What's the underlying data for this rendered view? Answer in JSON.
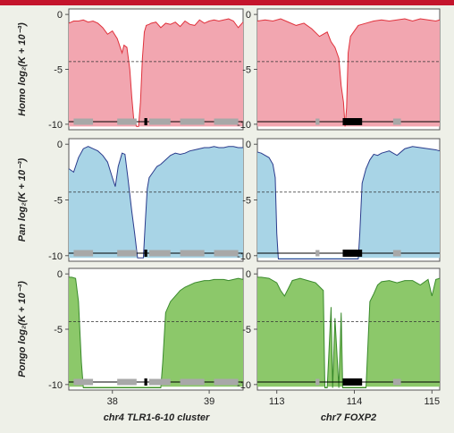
{
  "colors": {
    "top_bar": "#c4142c",
    "background": "#eef0e8",
    "homo": "#f2a6b0",
    "homo_line": "#e0323c",
    "pan": "#a8d4e6",
    "pan_line": "#2a3b8c",
    "pongo": "#8cc86a",
    "pongo_line": "#3a8a2c"
  },
  "chart_data": {
    "type": "area",
    "y_ticks": [
      "0",
      "-5",
      "-10"
    ],
    "ylim": [
      -10.5,
      0.5
    ],
    "ref_line": -4.3,
    "columns": [
      {
        "xlabel": "chr4 TLR1-6-10 cluster",
        "xlim": [
          37.55,
          39.35
        ],
        "xticks": [
          "38",
          "39"
        ],
        "xtick_values": [
          38,
          39
        ]
      },
      {
        "xlabel": "chr7 FOXP2",
        "xlim": [
          112.75,
          115.1
        ],
        "xticks": [
          "113",
          "114",
          "115"
        ],
        "xtick_values": [
          113,
          114,
          115
        ]
      }
    ],
    "rows": [
      {
        "species": "Homo",
        "ylabel_rest": "log₂(K + 10⁻³)",
        "color_key": "homo",
        "series": [
          {
            "x": [
              37.55,
              37.6,
              37.65,
              37.7,
              37.75,
              37.8,
              37.85,
              37.9,
              37.95,
              38.0,
              38.05,
              38.1,
              38.12,
              38.15,
              38.18,
              38.2,
              38.22,
              38.25,
              38.27,
              38.29,
              38.31,
              38.33,
              38.35,
              38.38,
              38.4,
              38.45,
              38.5,
              38.55,
              38.6,
              38.65,
              38.7,
              38.75,
              38.8,
              38.85,
              38.9,
              38.95,
              39.0,
              39.05,
              39.1,
              39.15,
              39.2,
              39.25,
              39.3,
              39.35
            ],
            "y": [
              -0.8,
              -0.6,
              -0.6,
              -0.5,
              -0.7,
              -0.6,
              -0.8,
              -1.2,
              -1.8,
              -1.5,
              -2.2,
              -3.5,
              -2.8,
              -3.0,
              -5.0,
              -7.5,
              -9.5,
              -10.2,
              -10.2,
              -8.0,
              -4.0,
              -1.6,
              -1.0,
              -0.9,
              -0.8,
              -0.7,
              -1.2,
              -0.8,
              -0.9,
              -0.7,
              -1.1,
              -0.6,
              -0.9,
              -1.0,
              -0.5,
              -0.8,
              -0.6,
              -0.5,
              -0.6,
              -0.5,
              -0.4,
              -0.6,
              -1.2,
              -0.7
            ]
          },
          {
            "x": [
              112.75,
              112.85,
              112.95,
              113.05,
              113.15,
              113.25,
              113.35,
              113.45,
              113.55,
              113.65,
              113.7,
              113.75,
              113.8,
              113.83,
              113.86,
              113.88,
              113.9,
              113.92,
              113.95,
              114.0,
              114.05,
              114.15,
              114.25,
              114.35,
              114.45,
              114.55,
              114.65,
              114.75,
              114.85,
              114.95,
              115.05,
              115.1
            ],
            "y": [
              -0.6,
              -0.5,
              -0.6,
              -0.4,
              -0.7,
              -1.0,
              -0.8,
              -1.3,
              -2.0,
              -1.6,
              -2.5,
              -3.0,
              -4.0,
              -6.5,
              -8.0,
              -10.2,
              -8.5,
              -3.5,
              -2.0,
              -1.5,
              -1.0,
              -0.8,
              -0.6,
              -0.5,
              -0.6,
              -0.5,
              -0.4,
              -0.6,
              -0.4,
              -0.5,
              -0.6,
              -0.5
            ]
          }
        ]
      },
      {
        "species": "Pan",
        "ylabel_rest": "log₂(K + 10⁻³)",
        "color_key": "pan",
        "series": [
          {
            "x": [
              37.55,
              37.6,
              37.65,
              37.7,
              37.75,
              37.8,
              37.85,
              37.9,
              37.95,
              38.0,
              38.03,
              38.06,
              38.1,
              38.13,
              38.16,
              38.2,
              38.23,
              38.26,
              38.28,
              38.3,
              38.32,
              38.34,
              38.36,
              38.38,
              38.42,
              38.46,
              38.5,
              38.55,
              38.6,
              38.65,
              38.7,
              38.75,
              38.8,
              38.85,
              38.9,
              38.95,
              39.0,
              39.05,
              39.1,
              39.15,
              39.2,
              39.25,
              39.3,
              39.35
            ],
            "y": [
              -2.2,
              -2.5,
              -1.2,
              -0.4,
              -0.2,
              -0.4,
              -0.6,
              -1.0,
              -1.6,
              -3.0,
              -3.8,
              -2.0,
              -0.8,
              -0.9,
              -3.0,
              -6.0,
              -8.0,
              -10.2,
              -10.2,
              -10.2,
              -10.2,
              -7.0,
              -4.0,
              -3.0,
              -2.5,
              -2.0,
              -1.8,
              -1.4,
              -1.0,
              -0.8,
              -0.9,
              -0.8,
              -0.6,
              -0.5,
              -0.4,
              -0.3,
              -0.3,
              -0.2,
              -0.3,
              -0.3,
              -0.2,
              -0.2,
              -0.3,
              -0.3
            ]
          },
          {
            "x": [
              112.75,
              112.8,
              112.85,
              112.9,
              112.95,
              112.98,
              113.0,
              113.02,
              113.5,
              114.0,
              114.05,
              114.07,
              114.1,
              114.15,
              114.2,
              114.25,
              114.3,
              114.35,
              114.45,
              114.55,
              114.65,
              114.75,
              114.85,
              114.95,
              115.05,
              115.1
            ],
            "y": [
              -0.7,
              -0.8,
              -1.0,
              -1.2,
              -1.8,
              -3.0,
              -8.0,
              -10.3,
              -10.3,
              -10.3,
              -10.3,
              -8.0,
              -3.5,
              -2.2,
              -1.4,
              -0.9,
              -1.0,
              -0.8,
              -0.6,
              -1.0,
              -0.4,
              -0.2,
              -0.3,
              -0.4,
              -0.5,
              -0.6
            ]
          }
        ]
      },
      {
        "species": "Pongo",
        "ylabel_rest": "log₂(K + 10⁻³)",
        "color_key": "pongo",
        "series": [
          {
            "x": [
              37.55,
              37.58,
              37.62,
              37.65,
              37.68,
              37.7,
              38.5,
              38.52,
              38.55,
              38.6,
              38.65,
              38.7,
              38.75,
              38.8,
              38.85,
              38.9,
              38.95,
              39.0,
              39.05,
              39.1,
              39.15,
              39.2,
              39.25,
              39.3,
              39.35
            ],
            "y": [
              -0.3,
              -0.3,
              -0.4,
              -2.5,
              -8.0,
              -10.3,
              -10.3,
              -8.0,
              -3.5,
              -2.5,
              -2.0,
              -1.5,
              -1.2,
              -1.0,
              -0.8,
              -0.7,
              -0.6,
              -0.6,
              -0.5,
              -0.5,
              -0.5,
              -0.6,
              -0.5,
              -0.4,
              -0.5
            ]
          },
          {
            "x": [
              112.75,
              112.8,
              112.9,
              113.0,
              113.05,
              113.1,
              113.15,
              113.2,
              113.3,
              113.4,
              113.5,
              113.6,
              113.62,
              113.65,
              113.7,
              113.72,
              113.75,
              113.8,
              113.83,
              113.85,
              113.88,
              113.9,
              113.95,
              114.0,
              114.05,
              114.1,
              114.15,
              114.2,
              114.25,
              114.3,
              114.35,
              114.45,
              114.55,
              114.65,
              114.75,
              114.85,
              114.95,
              115.0,
              115.05,
              115.1
            ],
            "y": [
              -0.3,
              -0.3,
              -0.4,
              -0.8,
              -1.5,
              -2.0,
              -1.3,
              -0.6,
              -0.4,
              -0.6,
              -0.8,
              -1.5,
              -10.3,
              -10.3,
              -3.0,
              -10.3,
              -4.0,
              -10.3,
              -3.5,
              -10.3,
              -10.3,
              -10.3,
              -10.3,
              -10.3,
              -10.3,
              -10.3,
              -10.3,
              -2.5,
              -1.8,
              -1.0,
              -0.7,
              -0.6,
              -0.8,
              -0.6,
              -0.6,
              -1.0,
              -0.5,
              -2.0,
              -0.5,
              -0.4
            ]
          }
        ]
      }
    ],
    "gene_tracks": [
      {
        "grey": [
          [
            37.6,
            37.8
          ],
          [
            38.05,
            38.25
          ],
          [
            38.38,
            38.6
          ],
          [
            38.7,
            38.95
          ],
          [
            39.05,
            39.3
          ]
        ],
        "black": [
          [
            38.33,
            38.36
          ]
        ]
      },
      {
        "grey": [
          [
            113.5,
            113.55
          ],
          [
            114.5,
            114.6
          ]
        ],
        "black": [
          [
            113.85,
            114.1
          ]
        ]
      }
    ]
  }
}
